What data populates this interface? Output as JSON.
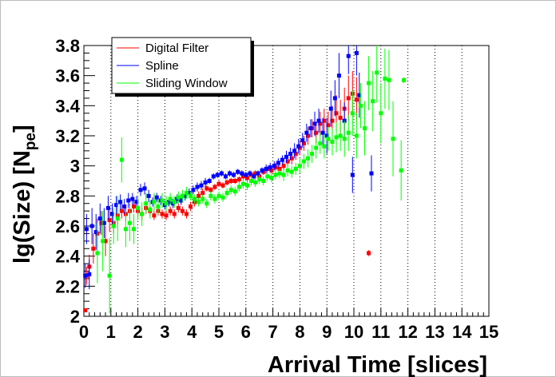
{
  "chart_data": {
    "type": "scatter",
    "title": "",
    "xlabel": "Arrival Time [slices]",
    "ylabel_main": "lg(Size) [N",
    "ylabel_sub": "pe",
    "ylabel_close": "]",
    "xlim": [
      0,
      15
    ],
    "ylim": [
      2,
      3.8
    ],
    "x_ticks": [
      "0",
      "1",
      "2",
      "3",
      "4",
      "5",
      "6",
      "7",
      "8",
      "9",
      "10",
      "11",
      "12",
      "13",
      "14",
      "15"
    ],
    "y_ticks": [
      "2",
      "2.2",
      "2.4",
      "2.6",
      "2.8",
      "3",
      "3.2",
      "3.4",
      "3.6",
      "3.8"
    ],
    "grid": {
      "x": true,
      "y": false
    },
    "legend_position": "top-left",
    "series": [
      {
        "name": "Digital Filter",
        "color": "#ff0000",
        "points": [
          [
            0.05,
            2.04,
            0.01
          ],
          [
            0.1,
            2.27,
            0.06
          ],
          [
            0.2,
            2.33,
            0.08
          ],
          [
            0.35,
            2.45,
            0.1
          ],
          [
            0.5,
            2.55,
            0.1
          ],
          [
            0.65,
            2.62,
            0.08
          ],
          [
            0.8,
            2.5,
            0.1
          ],
          [
            0.95,
            2.64,
            0.08
          ],
          [
            1.1,
            2.62,
            0.07
          ],
          [
            1.25,
            2.67,
            0.06
          ],
          [
            1.4,
            2.7,
            0.05
          ],
          [
            1.55,
            2.68,
            0.05
          ],
          [
            1.7,
            2.7,
            0.05
          ],
          [
            1.85,
            2.73,
            0.04
          ],
          [
            2.0,
            2.7,
            0.04
          ],
          [
            2.15,
            2.68,
            0.04
          ],
          [
            2.3,
            2.72,
            0.04
          ],
          [
            2.45,
            2.7,
            0.03
          ],
          [
            2.6,
            2.67,
            0.03
          ],
          [
            2.75,
            2.7,
            0.03
          ],
          [
            2.9,
            2.68,
            0.03
          ],
          [
            3.05,
            2.67,
            0.03
          ],
          [
            3.2,
            2.7,
            0.03
          ],
          [
            3.35,
            2.68,
            0.03
          ],
          [
            3.5,
            2.72,
            0.03
          ],
          [
            3.65,
            2.7,
            0.03
          ],
          [
            3.8,
            2.68,
            0.03
          ],
          [
            3.95,
            2.73,
            0.03
          ],
          [
            4.1,
            2.76,
            0.03
          ],
          [
            4.25,
            2.8,
            0.03
          ],
          [
            4.4,
            2.82,
            0.03
          ],
          [
            4.55,
            2.85,
            0.02
          ],
          [
            4.7,
            2.84,
            0.02
          ],
          [
            4.85,
            2.86,
            0.02
          ],
          [
            5.0,
            2.88,
            0.02
          ],
          [
            5.15,
            2.87,
            0.02
          ],
          [
            5.3,
            2.89,
            0.02
          ],
          [
            5.45,
            2.9,
            0.02
          ],
          [
            5.6,
            2.9,
            0.02
          ],
          [
            5.75,
            2.91,
            0.02
          ],
          [
            5.9,
            2.93,
            0.02
          ],
          [
            6.05,
            2.92,
            0.02
          ],
          [
            6.2,
            2.94,
            0.02
          ],
          [
            6.35,
            2.95,
            0.02
          ],
          [
            6.5,
            2.93,
            0.02
          ],
          [
            6.65,
            2.96,
            0.02
          ],
          [
            6.8,
            2.98,
            0.02
          ],
          [
            6.95,
            2.97,
            0.02
          ],
          [
            7.1,
            2.99,
            0.03
          ],
          [
            7.25,
            2.98,
            0.03
          ],
          [
            7.4,
            3.0,
            0.03
          ],
          [
            7.55,
            3.03,
            0.03
          ],
          [
            7.7,
            3.05,
            0.04
          ],
          [
            7.85,
            3.08,
            0.04
          ],
          [
            8.0,
            3.12,
            0.05
          ],
          [
            8.15,
            3.15,
            0.05
          ],
          [
            8.3,
            3.2,
            0.06
          ],
          [
            8.45,
            3.25,
            0.06
          ],
          [
            8.6,
            3.22,
            0.07
          ],
          [
            8.75,
            3.28,
            0.08
          ],
          [
            8.9,
            3.3,
            0.08
          ],
          [
            9.05,
            3.27,
            0.09
          ],
          [
            9.2,
            3.3,
            0.1
          ],
          [
            9.35,
            3.35,
            0.12
          ],
          [
            9.5,
            3.32,
            0.12
          ],
          [
            9.65,
            3.38,
            0.14
          ],
          [
            9.8,
            3.45,
            0.15
          ],
          [
            9.95,
            3.48,
            0.15
          ],
          [
            10.1,
            3.44,
            0.15
          ],
          [
            10.55,
            2.42,
            0.02
          ]
        ]
      },
      {
        "name": "Spline",
        "color": "#0000ff",
        "points": [
          [
            0.05,
            2.27,
            0.08
          ],
          [
            0.1,
            2.58,
            0.1
          ],
          [
            0.2,
            2.28,
            0.1
          ],
          [
            0.3,
            2.6,
            0.12
          ],
          [
            0.45,
            2.56,
            0.12
          ],
          [
            0.6,
            2.65,
            0.1
          ],
          [
            0.75,
            2.62,
            0.1
          ],
          [
            0.9,
            2.72,
            0.08
          ],
          [
            1.05,
            2.68,
            0.07
          ],
          [
            1.2,
            2.74,
            0.06
          ],
          [
            1.35,
            2.76,
            0.05
          ],
          [
            1.5,
            2.73,
            0.05
          ],
          [
            1.65,
            2.77,
            0.05
          ],
          [
            1.8,
            2.78,
            0.04
          ],
          [
            1.95,
            2.76,
            0.04
          ],
          [
            2.1,
            2.84,
            0.04
          ],
          [
            2.25,
            2.85,
            0.04
          ],
          [
            2.4,
            2.8,
            0.04
          ],
          [
            2.55,
            2.76,
            0.03
          ],
          [
            2.7,
            2.79,
            0.03
          ],
          [
            2.85,
            2.77,
            0.03
          ],
          [
            3.0,
            2.74,
            0.03
          ],
          [
            3.15,
            2.76,
            0.03
          ],
          [
            3.3,
            2.75,
            0.03
          ],
          [
            3.45,
            2.78,
            0.03
          ],
          [
            3.6,
            2.77,
            0.03
          ],
          [
            3.75,
            2.8,
            0.03
          ],
          [
            3.9,
            2.82,
            0.03
          ],
          [
            4.05,
            2.84,
            0.03
          ],
          [
            4.2,
            2.86,
            0.03
          ],
          [
            4.35,
            2.87,
            0.03
          ],
          [
            4.5,
            2.89,
            0.03
          ],
          [
            4.65,
            2.9,
            0.02
          ],
          [
            4.8,
            2.93,
            0.02
          ],
          [
            4.95,
            2.94,
            0.02
          ],
          [
            5.1,
            2.95,
            0.02
          ],
          [
            5.25,
            2.93,
            0.02
          ],
          [
            5.4,
            2.95,
            0.02
          ],
          [
            5.55,
            2.94,
            0.02
          ],
          [
            5.7,
            2.96,
            0.02
          ],
          [
            5.85,
            2.95,
            0.02
          ],
          [
            6.0,
            2.94,
            0.02
          ],
          [
            6.15,
            2.95,
            0.02
          ],
          [
            6.3,
            2.93,
            0.02
          ],
          [
            6.45,
            2.95,
            0.02
          ],
          [
            6.6,
            2.97,
            0.02
          ],
          [
            6.75,
            2.98,
            0.03
          ],
          [
            6.9,
            2.99,
            0.03
          ],
          [
            7.05,
            3.0,
            0.03
          ],
          [
            7.2,
            3.02,
            0.03
          ],
          [
            7.35,
            3.04,
            0.03
          ],
          [
            7.5,
            3.06,
            0.04
          ],
          [
            7.65,
            3.08,
            0.04
          ],
          [
            7.8,
            3.1,
            0.05
          ],
          [
            7.95,
            3.13,
            0.05
          ],
          [
            8.1,
            3.17,
            0.05
          ],
          [
            8.25,
            3.22,
            0.06
          ],
          [
            8.4,
            3.25,
            0.06
          ],
          [
            8.55,
            3.28,
            0.08
          ],
          [
            8.7,
            3.3,
            0.08
          ],
          [
            8.85,
            3.22,
            0.1
          ],
          [
            9.0,
            3.2,
            0.12
          ],
          [
            9.15,
            3.38,
            0.12
          ],
          [
            9.3,
            3.45,
            0.12
          ],
          [
            9.45,
            3.6,
            0.15
          ],
          [
            9.65,
            3.3,
            0.12
          ],
          [
            9.8,
            3.73,
            0.12
          ],
          [
            9.95,
            2.94,
            0.12
          ],
          [
            10.1,
            3.75,
            0.15
          ],
          [
            10.2,
            3.47,
            0.15
          ],
          [
            10.65,
            2.95,
            0.12
          ]
        ]
      },
      {
        "name": "Sliding Window",
        "color": "#00ff00",
        "points": [
          [
            0.5,
            2.42,
            0.2
          ],
          [
            0.7,
            2.5,
            0.2
          ],
          [
            0.95,
            2.27,
            0.25
          ],
          [
            1.1,
            2.6,
            0.12
          ],
          [
            1.25,
            2.65,
            0.15
          ],
          [
            1.4,
            3.04,
            0.15
          ],
          [
            1.55,
            2.58,
            0.12
          ],
          [
            1.7,
            2.62,
            0.12
          ],
          [
            1.85,
            2.58,
            0.1
          ],
          [
            2.0,
            2.72,
            0.08
          ],
          [
            2.15,
            2.68,
            0.08
          ],
          [
            2.3,
            2.75,
            0.07
          ],
          [
            2.45,
            2.71,
            0.06
          ],
          [
            2.6,
            2.76,
            0.06
          ],
          [
            2.75,
            2.73,
            0.05
          ],
          [
            2.9,
            2.77,
            0.05
          ],
          [
            3.05,
            2.75,
            0.05
          ],
          [
            3.2,
            2.78,
            0.04
          ],
          [
            3.35,
            2.76,
            0.04
          ],
          [
            3.5,
            2.79,
            0.04
          ],
          [
            3.65,
            2.8,
            0.04
          ],
          [
            3.8,
            2.82,
            0.04
          ],
          [
            3.95,
            2.8,
            0.03
          ],
          [
            4.1,
            2.78,
            0.03
          ],
          [
            4.25,
            2.76,
            0.03
          ],
          [
            4.4,
            2.78,
            0.03
          ],
          [
            4.55,
            2.75,
            0.03
          ],
          [
            4.7,
            2.8,
            0.03
          ],
          [
            4.85,
            2.78,
            0.03
          ],
          [
            5.0,
            2.8,
            0.03
          ],
          [
            5.15,
            2.79,
            0.03
          ],
          [
            5.3,
            2.82,
            0.03
          ],
          [
            5.45,
            2.84,
            0.03
          ],
          [
            5.6,
            2.83,
            0.03
          ],
          [
            5.75,
            2.86,
            0.03
          ],
          [
            5.9,
            2.88,
            0.03
          ],
          [
            6.05,
            2.87,
            0.03
          ],
          [
            6.2,
            2.9,
            0.03
          ],
          [
            6.35,
            2.89,
            0.03
          ],
          [
            6.5,
            2.91,
            0.03
          ],
          [
            6.65,
            2.9,
            0.03
          ],
          [
            6.8,
            2.93,
            0.03
          ],
          [
            6.95,
            2.92,
            0.03
          ],
          [
            7.1,
            2.94,
            0.03
          ],
          [
            7.25,
            2.95,
            0.03
          ],
          [
            7.4,
            2.94,
            0.04
          ],
          [
            7.55,
            2.97,
            0.04
          ],
          [
            7.7,
            2.96,
            0.04
          ],
          [
            7.85,
            2.98,
            0.04
          ],
          [
            8.0,
            3.0,
            0.05
          ],
          [
            8.15,
            3.03,
            0.05
          ],
          [
            8.3,
            3.05,
            0.06
          ],
          [
            8.45,
            3.08,
            0.06
          ],
          [
            8.6,
            3.12,
            0.07
          ],
          [
            8.75,
            3.15,
            0.07
          ],
          [
            8.9,
            3.13,
            0.08
          ],
          [
            9.05,
            3.18,
            0.08
          ],
          [
            9.2,
            3.16,
            0.09
          ],
          [
            9.35,
            3.19,
            0.1
          ],
          [
            9.5,
            3.2,
            0.1
          ],
          [
            9.65,
            3.18,
            0.12
          ],
          [
            9.8,
            3.22,
            0.12
          ],
          [
            9.95,
            3.35,
            0.15
          ],
          [
            10.1,
            3.2,
            0.15
          ],
          [
            10.25,
            3.4,
            0.15
          ],
          [
            10.4,
            3.25,
            0.18
          ],
          [
            10.55,
            3.55,
            0.18
          ],
          [
            10.7,
            3.43,
            0.2
          ],
          [
            10.85,
            3.62,
            0.2
          ],
          [
            11.0,
            3.35,
            0.2
          ],
          [
            11.15,
            3.58,
            0.2
          ],
          [
            11.3,
            3.57,
            0.2
          ],
          [
            11.45,
            3.18,
            0.25
          ],
          [
            11.75,
            2.97,
            0.2
          ],
          [
            11.85,
            3.57,
            0.02
          ]
        ]
      }
    ]
  }
}
